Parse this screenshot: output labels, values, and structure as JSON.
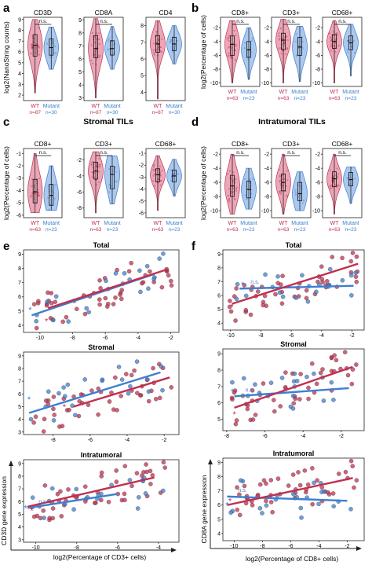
{
  "colors": {
    "wt": "#c0304f",
    "mutant": "#3d7fd0",
    "wt_fill": "#e48aa0",
    "mutant_fill": "#8fb6e8",
    "axis": "#222222",
    "box": "#111111"
  },
  "panel_letters": [
    "a",
    "b",
    "c",
    "d",
    "e",
    "f"
  ],
  "section_titles": {
    "c": "Stromal TILs",
    "d": "Intratumoral TILs"
  },
  "violin_groups": [
    {
      "panel": "a",
      "ylabel": "log2(NanoString counts)",
      "xlabels": {
        "wt": "WT",
        "mutant": "Mutant"
      },
      "counts": {
        "wt": "n=87",
        "mutant": "n=30"
      },
      "subplots": [
        {
          "title": "CD3D",
          "annotation": "n.s.",
          "ylim": [
            1.5,
            9.2
          ],
          "ticks": [
            2,
            3,
            4,
            5,
            6,
            7,
            8,
            9
          ],
          "wt": {
            "min": 2.2,
            "q1": 5.6,
            "median": 6.6,
            "q3": 7.6,
            "max": 9.0
          },
          "mutant": {
            "min": 4.4,
            "q1": 5.7,
            "median": 6.4,
            "q3": 7.2,
            "max": 8.3
          }
        },
        {
          "title": "CD8A",
          "annotation": "n.s.",
          "ylim": [
            2.8,
            9.2
          ],
          "ticks": [
            3,
            4,
            5,
            6,
            7,
            8,
            9
          ],
          "wt": {
            "min": 3.0,
            "q1": 6.1,
            "median": 6.8,
            "q3": 7.8,
            "max": 9.1
          },
          "mutant": {
            "min": 5.2,
            "q1": 6.3,
            "median": 6.8,
            "q3": 7.4,
            "max": 8.5
          }
        },
        {
          "title": "CD4",
          "annotation": "",
          "ylim": [
            3.5,
            8.5
          ],
          "ticks": [
            4,
            5,
            6,
            7,
            8
          ],
          "wt": {
            "min": 3.6,
            "q1": 6.4,
            "median": 6.9,
            "q3": 7.4,
            "max": 8.3
          },
          "mutant": {
            "min": 5.7,
            "q1": 6.5,
            "median": 6.9,
            "q3": 7.3,
            "max": 8.0
          }
        }
      ]
    },
    {
      "panel": "b",
      "ylabel": "log2(Percentage of cells)",
      "xlabels": {
        "wt": "WT",
        "mutant": "Mutant"
      },
      "counts": {
        "wt": "n=63",
        "mutant": "n=23"
      },
      "subplots": [
        {
          "title": "CD8+",
          "annotation": "n.s.",
          "ylim": [
            -10.5,
            -0.5
          ],
          "ticks": [
            -2,
            -4,
            -6,
            -8,
            -10
          ],
          "wt": {
            "min": -10.0,
            "q1": -6.0,
            "median": -4.4,
            "q3": -3.2,
            "max": -1.0
          },
          "mutant": {
            "min": -9.5,
            "q1": -6.3,
            "median": -5.2,
            "q3": -4.0,
            "max": -2.0
          }
        },
        {
          "title": "CD3+",
          "annotation": "n.s.",
          "ylim": [
            -10.5,
            -0.5
          ],
          "ticks": [
            -2,
            -4,
            -6,
            -8,
            -10
          ],
          "wt": {
            "min": -10.0,
            "q1": -5.2,
            "median": -3.8,
            "q3": -2.8,
            "max": -0.8
          },
          "mutant": {
            "min": -9.8,
            "q1": -6.0,
            "median": -4.8,
            "q3": -3.4,
            "max": -1.8
          }
        },
        {
          "title": "CD68+",
          "annotation": "n.s.",
          "ylim": [
            -10.5,
            -0.5
          ],
          "ticks": [
            -2,
            -4,
            -6,
            -8,
            -10
          ],
          "wt": {
            "min": -10.0,
            "q1": -5.0,
            "median": -4.0,
            "q3": -3.0,
            "max": -1.0
          },
          "mutant": {
            "min": -9.0,
            "q1": -5.2,
            "median": -4.2,
            "q3": -3.2,
            "max": -1.5
          }
        }
      ]
    },
    {
      "panel": "c",
      "ylabel": "log2(Percentage of cells)",
      "xlabels": {
        "wt": "WT",
        "mutant": "Mutant"
      },
      "counts": {
        "wt": "n=63",
        "mutant": "n=23"
      },
      "subplots": [
        {
          "title": "CD8+",
          "annotation": "n.s.",
          "ylim": [
            -6.2,
            -0.6
          ],
          "ticks": [
            -1,
            -2,
            -3,
            -4,
            -5,
            -6
          ],
          "wt": {
            "min": -5.8,
            "q1": -5.0,
            "median": -4.1,
            "q3": -3.1,
            "max": -1.0
          },
          "mutant": {
            "min": -5.6,
            "q1": -5.2,
            "median": -4.4,
            "q3": -3.5,
            "max": -2.0
          }
        },
        {
          "title": "CD3+",
          "annotation": "n.s.",
          "ylim": [
            -9.2,
            -0.6
          ],
          "ticks": [
            -2,
            -4,
            -6,
            -8
          ],
          "wt": {
            "min": -8.6,
            "q1": -4.4,
            "median": -3.4,
            "q3": -2.3,
            "max": -1.0
          },
          "mutant": {
            "min": -7.5,
            "q1": -5.6,
            "median": -3.8,
            "q3": -2.8,
            "max": -1.5
          }
        },
        {
          "title": "CD68+",
          "annotation": "",
          "ylim": [
            -6.4,
            -0.6
          ],
          "ticks": [
            -1,
            -2,
            -3,
            -4,
            -5,
            -6
          ],
          "wt": {
            "min": -5.8,
            "q1": -3.4,
            "median": -2.8,
            "q3": -2.3,
            "max": -1.2
          },
          "mutant": {
            "min": -4.6,
            "q1": -3.4,
            "median": -2.9,
            "q3": -2.4,
            "max": -1.5
          }
        }
      ]
    },
    {
      "panel": "d",
      "ylabel": "log2(Percentage of cells)",
      "xlabels": {
        "wt": "WT",
        "mutant": "Mutant"
      },
      "counts": {
        "wt": "n=63",
        "mutant": "n=23"
      },
      "subplots": [
        {
          "title": "CD8+",
          "annotation": "n.s.",
          "ylim": [
            -11,
            -1.2
          ],
          "ticks": [
            -2,
            -4,
            -6,
            -8,
            -10
          ],
          "wt": {
            "min": -10.5,
            "q1": -8.0,
            "median": -6.5,
            "q3": -5.0,
            "max": -2.0
          },
          "mutant": {
            "min": -9.8,
            "q1": -8.2,
            "median": -7.0,
            "q3": -5.8,
            "max": -4.0
          }
        },
        {
          "title": "CD3+",
          "annotation": "n.s.",
          "ylim": [
            -11,
            -1.2
          ],
          "ticks": [
            -2,
            -4,
            -6,
            -8,
            -10
          ],
          "wt": {
            "min": -10.5,
            "q1": -7.2,
            "median": -6.0,
            "q3": -4.8,
            "max": -2.0
          },
          "mutant": {
            "min": -10.0,
            "q1": -8.6,
            "median": -7.6,
            "q3": -6.0,
            "max": -4.5
          }
        },
        {
          "title": "CD68+",
          "annotation": "n.s.",
          "ylim": [
            -11,
            -1.2
          ],
          "ticks": [
            -2,
            -4,
            -6,
            -8,
            -10
          ],
          "wt": {
            "min": -10.5,
            "q1": -6.6,
            "median": -5.5,
            "q3": -4.5,
            "max": -2.0
          },
          "mutant": {
            "min": -9.0,
            "q1": -6.5,
            "median": -5.6,
            "q3": -4.6,
            "max": -3.8
          }
        }
      ]
    }
  ],
  "chart_data": [
    {
      "panel": "e",
      "type": "scatter",
      "ylabel": "CD3D gene expression",
      "xlabel": "log2(Percentage of CD3+ cells)",
      "subplots": [
        {
          "title": "Total",
          "xlim": [
            -11,
            -1.5
          ],
          "ylim": [
            3.5,
            9.3
          ],
          "xticks": [
            -10,
            -8,
            -6,
            -4,
            -2
          ],
          "yticks": [
            4,
            5,
            6,
            7,
            8,
            9
          ],
          "ns_label": "",
          "star": {
            "wt": [
              -9.6,
              4.3
            ],
            "mutant": [
              -10.6,
              5.1
            ]
          },
          "wt_line": [
            [
              -9.5,
              5.2
            ],
            [
              -2.3,
              7.9
            ]
          ],
          "mutant_line": [
            [
              -10.5,
              4.7
            ],
            [
              -3.0,
              7.6
            ]
          ]
        },
        {
          "title": "Stromal",
          "xlim": [
            -9.6,
            -1.2
          ],
          "ylim": [
            2.8,
            9.3
          ],
          "xticks": [
            -8,
            -6,
            -4,
            -2
          ],
          "yticks": [
            3,
            4,
            5,
            6,
            7,
            8,
            9
          ],
          "ns_label": "",
          "star": {
            "wt": [
              -7.4,
              5.0
            ],
            "mutant": [
              -9.3,
              5.6
            ]
          },
          "wt_line": [
            [
              -6.9,
              5.0
            ],
            [
              -1.7,
              7.3
            ]
          ],
          "mutant_line": [
            [
              -9.3,
              4.5
            ],
            [
              -2.2,
              7.7
            ]
          ]
        },
        {
          "title": "Intratumoral",
          "xlim": [
            -10.6,
            -3.0
          ],
          "ylim": [
            2.8,
            9.3
          ],
          "xticks": [
            -10,
            -8,
            -6,
            -4
          ],
          "yticks": [
            3,
            4,
            5,
            6,
            7,
            8,
            9
          ],
          "ns_label": "n.s.",
          "star": {
            "wt": [
              -10.2,
              5.3
            ],
            "mutant": [
              -10.5,
              5.5
            ]
          },
          "wt_line": [
            [
              -10.4,
              5.6
            ],
            [
              -4.2,
              7.9
            ]
          ],
          "mutant_line": [
            [
              -10.4,
              5.5
            ],
            [
              -6.0,
              6.6
            ]
          ]
        }
      ]
    },
    {
      "panel": "f",
      "type": "scatter",
      "ylabel": "CD8A gene expression",
      "xlabel": "log2(Percentage of CD8+ cells)",
      "subplots": [
        {
          "title": "Total",
          "xlim": [
            -10.5,
            -1.2
          ],
          "ylim": [
            3.5,
            9.3
          ],
          "xticks": [
            -10,
            -8,
            -6,
            -4,
            -2
          ],
          "yticks": [
            4,
            5,
            6,
            7,
            8,
            9
          ],
          "ns_label": "n.s.",
          "star": {
            "wt": [
              -9.9,
              5.2
            ],
            "mutant": [
              -9.2,
              6.8
            ]
          },
          "wt_line": [
            [
              -9.9,
              5.4
            ],
            [
              -1.6,
              8.3
            ]
          ],
          "mutant_line": [
            [
              -9.4,
              6.5
            ],
            [
              -1.9,
              6.7
            ]
          ]
        },
        {
          "title": "Stromal",
          "xlim": [
            -8.2,
            -0.8
          ],
          "ylim": [
            4.3,
            9.3
          ],
          "xticks": [
            -8,
            -6,
            -4,
            -2
          ],
          "yticks": [
            5,
            6,
            7,
            8,
            9
          ],
          "ns_label": "n.s.",
          "star": {
            "wt": [
              -7.6,
              5.3
            ],
            "mutant": [
              -7.7,
              6.7
            ]
          },
          "wt_line": [
            [
              -7.6,
              5.7
            ],
            [
              -1.4,
              8.2
            ]
          ],
          "mutant_line": [
            [
              -7.6,
              6.4
            ],
            [
              -1.6,
              6.9
            ]
          ]
        },
        {
          "title": "Intratumoral",
          "xlim": [
            -10.8,
            -0.8
          ],
          "ylim": [
            3.5,
            9.3
          ],
          "xticks": [
            -10,
            -8,
            -6,
            -4,
            -2
          ],
          "yticks": [
            4,
            5,
            6,
            7,
            8,
            9
          ],
          "ns_label": "n.s.",
          "star": {
            "wt": [
              -10.3,
              6.3
            ],
            "mutant": [
              -10.5,
              6.0
            ]
          },
          "wt_line": [
            [
              -10.5,
              6.0
            ],
            [
              -1.6,
              7.9
            ]
          ],
          "mutant_line": [
            [
              -10.5,
              6.6
            ],
            [
              -2.0,
              6.3
            ]
          ]
        }
      ]
    }
  ]
}
